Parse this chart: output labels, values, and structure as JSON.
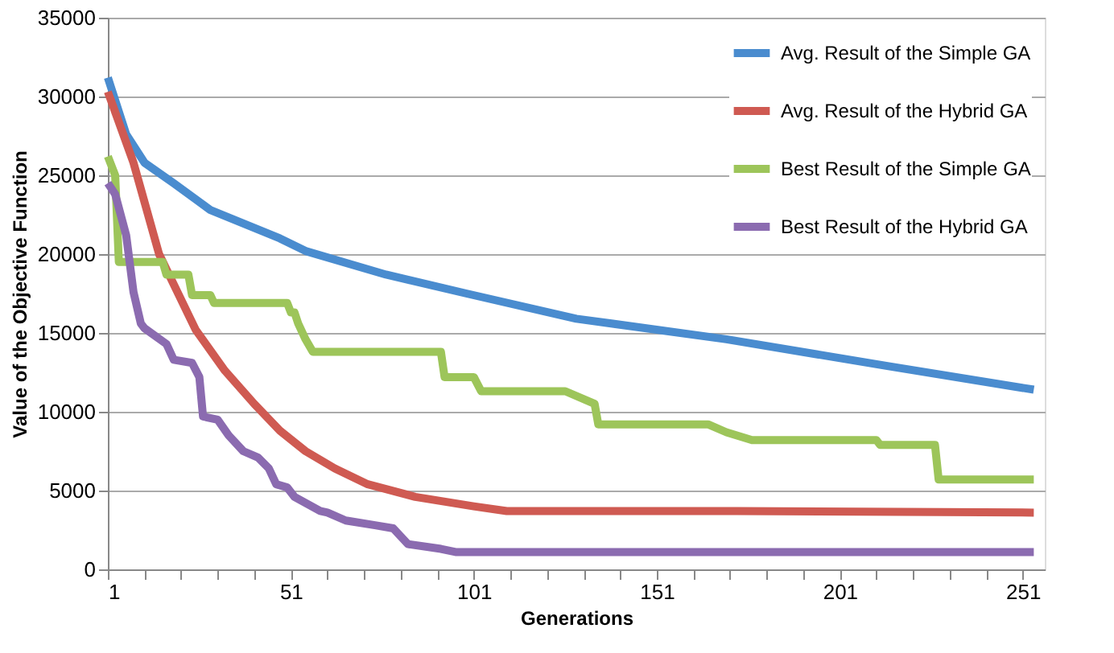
{
  "chart_data": {
    "type": "line",
    "xlabel": "Generations",
    "ylabel": "Value of the Objective Function",
    "xlim": [
      1,
      257
    ],
    "xticks": [
      1,
      {
        "value": 11,
        "label": null
      },
      {
        "value": 21,
        "label": null
      },
      {
        "value": 31,
        "label": null
      },
      {
        "value": 41,
        "label": null
      },
      51,
      {
        "value": 61,
        "label": null
      },
      {
        "value": 71,
        "label": null
      },
      {
        "value": 81,
        "label": null
      },
      {
        "value": 91,
        "label": null
      },
      101,
      {
        "value": 111,
        "label": null
      },
      {
        "value": 121,
        "label": null
      },
      {
        "value": 131,
        "label": null
      },
      {
        "value": 141,
        "label": null
      },
      151,
      {
        "value": 161,
        "label": null
      },
      {
        "value": 171,
        "label": null
      },
      {
        "value": 181,
        "label": null
      },
      {
        "value": 191,
        "label": null
      },
      201,
      {
        "value": 211,
        "label": null
      },
      {
        "value": 221,
        "label": null
      },
      {
        "value": 231,
        "label": null
      },
      {
        "value": 241,
        "label": null
      },
      251
    ],
    "ylim": [
      0,
      35000
    ],
    "yticks": [
      0,
      5000,
      10000,
      15000,
      20000,
      25000,
      30000,
      35000
    ],
    "grid": "y",
    "legend": "top right",
    "marker": "none",
    "line_style": "solid",
    "series": [
      {
        "name": "Avg. Result of the Simple GA",
        "color": "#4a8ccf",
        "x": [
          1,
          6,
          11,
          19,
          29,
          48,
          55,
          77,
          99,
          129,
          170,
          214,
          254
        ],
        "values": [
          31200,
          27600,
          25800,
          24500,
          22800,
          21000,
          20200,
          18700,
          17500,
          15900,
          14600,
          12900,
          11400
        ]
      },
      {
        "name": "Avg. Result of the Hybrid GA",
        "color": "#cf5a52",
        "x": [
          1,
          8,
          15,
          25,
          33,
          41,
          48,
          55,
          63,
          72,
          85,
          101,
          110,
          173,
          254
        ],
        "values": [
          30300,
          25800,
          20000,
          15200,
          12600,
          10500,
          8800,
          7500,
          6400,
          5400,
          4600,
          4000,
          3700,
          3700,
          3600
        ]
      },
      {
        "name": "Best Result of the Simple GA",
        "color": "#9dc55a",
        "x": [
          1,
          3,
          4,
          16,
          17,
          23,
          24,
          29,
          30,
          50,
          51,
          52,
          53,
          55,
          57,
          92,
          93,
          101,
          103,
          126,
          134,
          135,
          165,
          170,
          177,
          211,
          212,
          227,
          228,
          254
        ],
        "values": [
          26200,
          25000,
          19500,
          19500,
          18700,
          18700,
          17400,
          17400,
          16900,
          16900,
          16300,
          16300,
          15600,
          14600,
          13800,
          13800,
          12200,
          12200,
          11300,
          11300,
          10500,
          9200,
          9200,
          8700,
          8200,
          8200,
          7900,
          7900,
          5700,
          5700
        ]
      },
      {
        "name": "Best Result of the Hybrid GA",
        "color": "#8b6bb0",
        "x": [
          1,
          3,
          6,
          8,
          10,
          11,
          17,
          19,
          24,
          26,
          27,
          31,
          34,
          38,
          42,
          45,
          47,
          50,
          52,
          59,
          61,
          66,
          74,
          79,
          83,
          92,
          96,
          254
        ],
        "values": [
          24500,
          23800,
          21200,
          17600,
          15600,
          15300,
          14300,
          13300,
          13100,
          12200,
          9700,
          9500,
          8500,
          7500,
          7100,
          6400,
          5400,
          5200,
          4600,
          3700,
          3600,
          3100,
          2800,
          2600,
          1600,
          1300,
          1100,
          1100
        ]
      }
    ]
  }
}
